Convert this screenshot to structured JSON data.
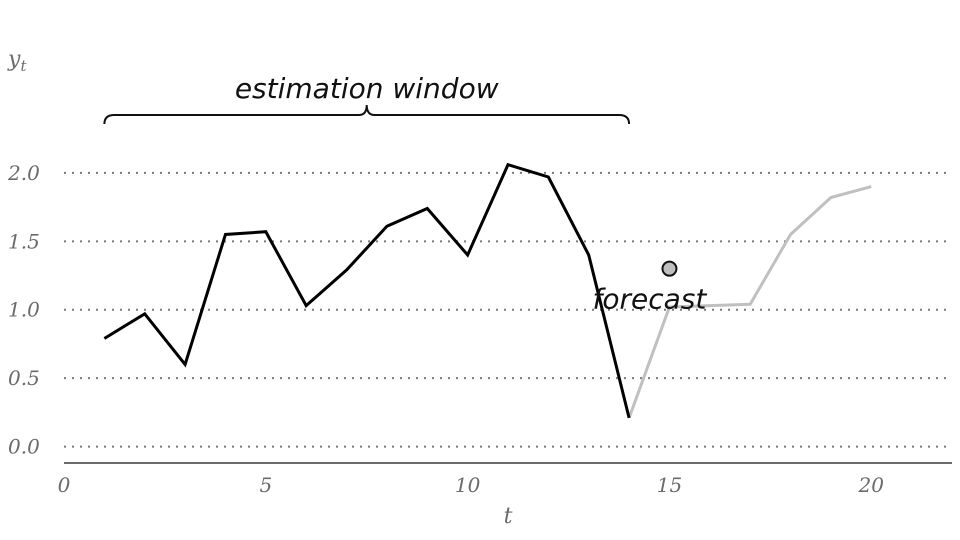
{
  "chart_data": {
    "type": "line",
    "xlabel": "t",
    "ylabel": "y",
    "ylabel_sub": "t",
    "xlim": [
      0,
      22
    ],
    "ylim": [
      -0.12,
      2.35
    ],
    "xticks": [
      0,
      5,
      10,
      15,
      20
    ],
    "xtick_labels": [
      "0",
      "5",
      "10",
      "15",
      "20"
    ],
    "yticks": [
      0.0,
      0.5,
      1.0,
      1.5,
      2.0
    ],
    "ytick_labels": [
      "0.0",
      "0.5",
      "1.0",
      "1.5",
      "2.0"
    ],
    "grid": "horizontal dotted",
    "colors": {
      "estimation": "#000000",
      "future": "#c0c0c0",
      "forecast_point": "#bfbfbf",
      "grid": "#7a7a7a",
      "axis": "#6b6b6b"
    },
    "series": [
      {
        "x": [
          1,
          2,
          3,
          4,
          5,
          6,
          7,
          8,
          9,
          10,
          11,
          12,
          13,
          14
        ],
        "values": [
          0.79,
          0.97,
          0.6,
          1.55,
          1.57,
          1.03,
          1.29,
          1.61,
          1.74,
          1.4,
          2.06,
          1.97,
          1.4,
          0.21
        ]
      },
      {
        "x": [
          14,
          15,
          16,
          17,
          18,
          19,
          20
        ],
        "values": [
          0.21,
          1.02,
          1.03,
          1.04,
          1.55,
          1.82,
          1.9
        ]
      }
    ],
    "forecast_point": {
      "x": 15,
      "y": 1.3
    },
    "annotations": {
      "estimation_window": {
        "label": "estimation window",
        "x_start": 1,
        "x_end": 14
      },
      "forecast": {
        "label": "forecast"
      }
    }
  }
}
